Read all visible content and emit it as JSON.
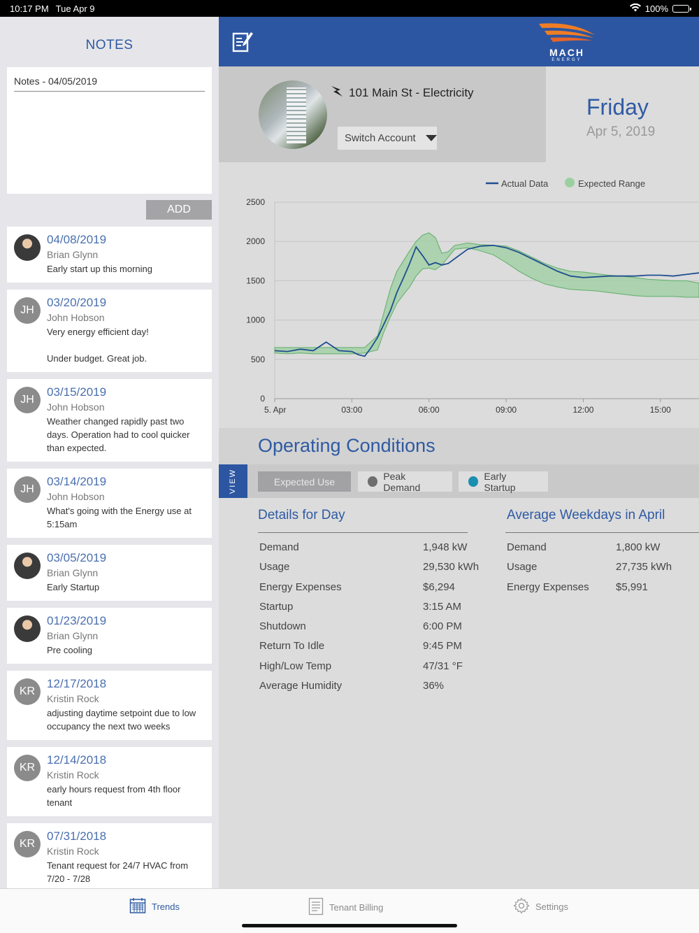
{
  "status_bar": {
    "time": "10:17 PM",
    "date": "Tue Apr 9",
    "battery": "100%"
  },
  "notes": {
    "title": "NOTES",
    "input_value": "Notes - 04/05/2019",
    "add_label": "ADD",
    "items": [
      {
        "date": "04/08/2019",
        "author": "Brian Glynn",
        "initials": "",
        "text": "Early start up this morning"
      },
      {
        "date": "03/20/2019",
        "author": "John Hobson",
        "initials": "JH",
        "text": "Very energy efficient day!\n\nUnder budget.  Great job."
      },
      {
        "date": "03/15/2019",
        "author": "John Hobson",
        "initials": "JH",
        "text": "Weather changed rapidly past two days.  Operation had to cool quicker than expected."
      },
      {
        "date": "03/14/2019",
        "author": "John Hobson",
        "initials": "JH",
        "text": "What's going with the Energy use at 5:15am"
      },
      {
        "date": "03/05/2019",
        "author": "Brian Glynn",
        "initials": "",
        "text": "Early Startup"
      },
      {
        "date": "01/23/2019",
        "author": "Brian Glynn",
        "initials": "",
        "text": "Pre cooling"
      },
      {
        "date": "12/17/2018",
        "author": "Kristin Rock",
        "initials": "KR",
        "text": "adjusting daytime setpoint due to low occupancy the next two weeks"
      },
      {
        "date": "12/14/2018",
        "author": "Kristin Rock",
        "initials": "KR",
        "text": "early hours request from 4th floor tenant"
      },
      {
        "date": "07/31/2018",
        "author": "Kristin Rock",
        "initials": "KR",
        "text": "Tenant request for 24/7 HVAC from 7/20 - 7/28"
      }
    ]
  },
  "header": {
    "logo_text": "MACH",
    "logo_sub": "ENERGY",
    "icon": "edit-note-icon"
  },
  "account": {
    "name": "101 Main St - Electricity",
    "switch_label": "Switch Account",
    "day": "Friday",
    "date": "Apr 5, 2019"
  },
  "chart_data": {
    "type": "line",
    "title": "",
    "xlabel": "",
    "ylabel": "",
    "ylim": [
      0,
      2500
    ],
    "yticks": [
      "0",
      "500",
      "1000",
      "1500",
      "2000",
      "2500"
    ],
    "xticks": [
      {
        "label": "5. Apr",
        "hour": 0
      },
      {
        "label": "03:00",
        "hour": 3
      },
      {
        "label": "06:00",
        "hour": 6
      },
      {
        "label": "09:00",
        "hour": 9
      },
      {
        "label": "12:00",
        "hour": 12
      },
      {
        "label": "15:00",
        "hour": 15
      }
    ],
    "xlim": [
      0,
      16.5
    ],
    "legend": {
      "placement": "top-right",
      "actual": "Actual Data",
      "expected": "Expected Range"
    },
    "colors": {
      "actual": "#1f4f8f",
      "range_fill": "#9ccfa0",
      "range_stroke": "#5fae6a"
    },
    "series": [
      {
        "name": "Actual Data",
        "x": [
          0,
          0.5,
          1,
          1.5,
          2,
          2.5,
          3,
          3.25,
          3.5,
          3.75,
          4,
          4.25,
          4.5,
          4.75,
          5,
          5.25,
          5.5,
          5.75,
          6,
          6.25,
          6.5,
          6.75,
          7,
          7.5,
          8,
          8.5,
          9,
          9.5,
          10,
          10.5,
          11,
          11.5,
          12,
          12.5,
          13,
          13.5,
          14,
          14.5,
          15,
          15.5,
          16,
          16.5
        ],
        "values": [
          610,
          600,
          630,
          610,
          720,
          610,
          600,
          560,
          540,
          650,
          780,
          950,
          1120,
          1350,
          1530,
          1720,
          1930,
          1820,
          1700,
          1730,
          1700,
          1720,
          1780,
          1900,
          1940,
          1950,
          1920,
          1860,
          1780,
          1700,
          1620,
          1560,
          1540,
          1550,
          1560,
          1560,
          1560,
          1570,
          1570,
          1560,
          1580,
          1600
        ]
      },
      {
        "name": "Expected Range",
        "x": [
          0,
          0.5,
          1,
          1.5,
          2,
          2.5,
          3,
          3.5,
          4,
          4.25,
          4.5,
          4.75,
          5,
          5.25,
          5.5,
          5.75,
          6,
          6.25,
          6.5,
          6.75,
          7,
          7.5,
          8,
          8.5,
          9,
          9.5,
          10,
          10.5,
          11,
          11.5,
          12,
          12.5,
          13,
          13.5,
          14,
          14.5,
          15,
          15.5,
          16,
          16.5
        ],
        "low": [
          580,
          570,
          580,
          570,
          570,
          570,
          570,
          580,
          620,
          850,
          1040,
          1210,
          1320,
          1420,
          1560,
          1650,
          1660,
          1640,
          1700,
          1800,
          1900,
          1920,
          1880,
          1830,
          1730,
          1620,
          1530,
          1460,
          1420,
          1390,
          1380,
          1370,
          1350,
          1330,
          1310,
          1300,
          1300,
          1300,
          1290,
          1290
        ],
        "high": [
          650,
          650,
          650,
          650,
          650,
          650,
          650,
          650,
          800,
          1100,
          1400,
          1620,
          1750,
          1880,
          2000,
          2080,
          2110,
          2050,
          1850,
          1870,
          1950,
          1980,
          1960,
          1950,
          1940,
          1880,
          1800,
          1720,
          1660,
          1620,
          1610,
          1590,
          1570,
          1560,
          1540,
          1520,
          1510,
          1500,
          1500,
          1470
        ]
      }
    ]
  },
  "operating": {
    "title": "Operating Conditions",
    "view_label": "VIEW",
    "chips": [
      {
        "label": "Expected Use"
      },
      {
        "label": "Peak Demand",
        "color": "#6e6e6e"
      },
      {
        "label": "Early Startup",
        "color": "#1a8fb0"
      }
    ]
  },
  "details_day": {
    "title": "Details for Day",
    "rows": [
      {
        "k": "Demand",
        "v": "1,948 kW"
      },
      {
        "k": "Usage",
        "v": "29,530 kWh"
      },
      {
        "k": "Energy Expenses",
        "v": "$6,294"
      },
      {
        "k": "Startup",
        "v": "3:15 AM"
      },
      {
        "k": "Shutdown",
        "v": "6:00 PM"
      },
      {
        "k": "Return To Idle",
        "v": "9:45 PM"
      },
      {
        "k": "High/Low Temp",
        "v": "47/31 °F"
      },
      {
        "k": "Average Humidity",
        "v": "36%"
      }
    ]
  },
  "details_avg": {
    "title": "Average Weekdays in April",
    "rows": [
      {
        "k": "Demand",
        "v": "1,800 kW"
      },
      {
        "k": "Usage",
        "v": "27,735 kWh"
      },
      {
        "k": "Energy Expenses",
        "v": "$5,991"
      }
    ]
  },
  "tabs": [
    {
      "label": "Trends",
      "icon": "calendar-grid-icon"
    },
    {
      "label": "Tenant Billing",
      "icon": "document-icon"
    },
    {
      "label": "Settings",
      "icon": "gear-icon"
    }
  ]
}
